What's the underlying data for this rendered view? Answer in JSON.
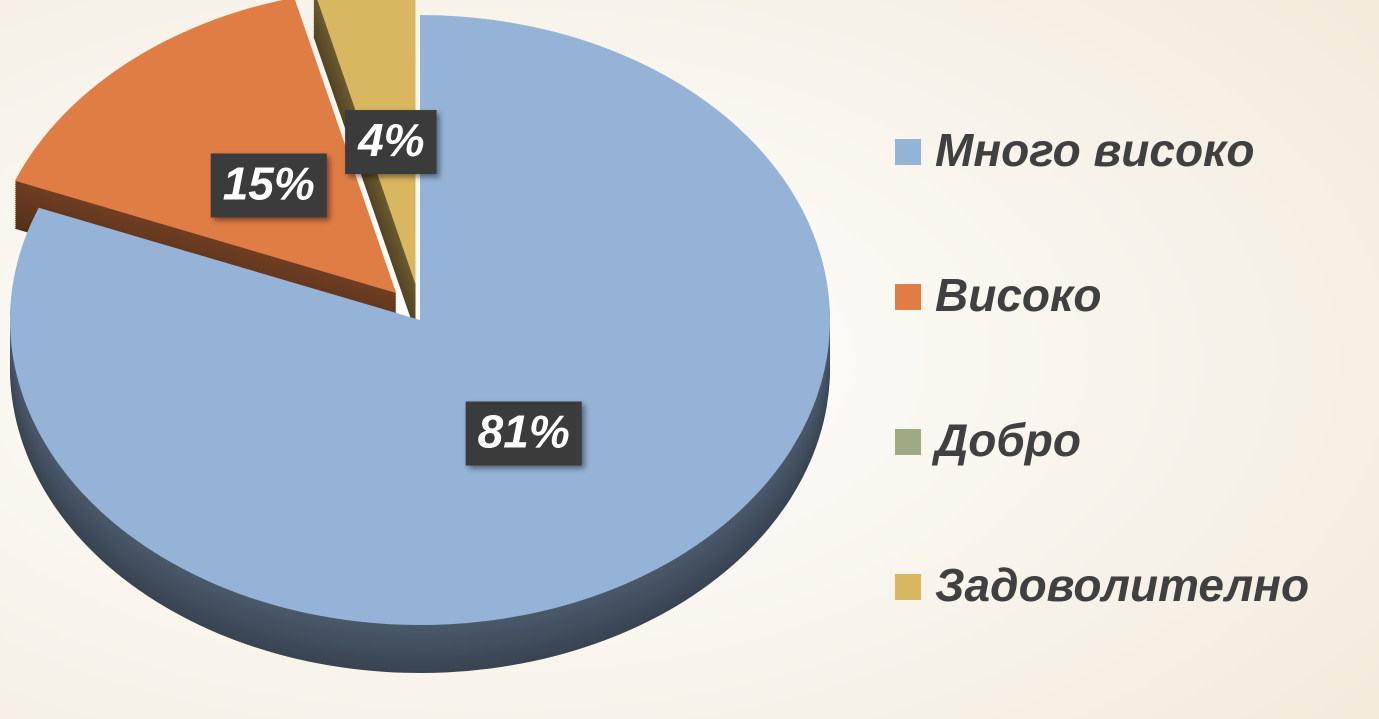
{
  "chart_data": {
    "type": "pie",
    "categories": [
      "Много високо",
      "Високо",
      "Добро",
      "Задоволително"
    ],
    "values": [
      81,
      15,
      0,
      4
    ],
    "value_labels": [
      "81%",
      "15%",
      null,
      "4%"
    ],
    "colors": [
      "#95b3d7",
      "#e07d45",
      "#9faa82",
      "#d9b660"
    ],
    "legend": "right"
  }
}
